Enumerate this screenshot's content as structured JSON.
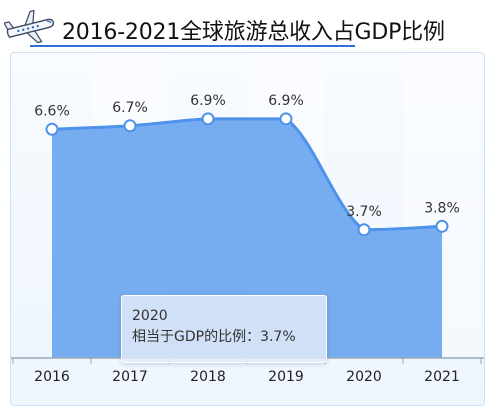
{
  "header": {
    "title": "2016-2021全球旅游总收入占GDP比例",
    "icon": "airplane-icon"
  },
  "tooltip": {
    "year": "2020",
    "label": "相当于GDP的比例",
    "separator": "：",
    "value": "3.7%"
  },
  "colors": {
    "area_fill": "#6aa6ef",
    "line": "#4f92ea",
    "point_fill": "#ffffff",
    "axis": "#9aa8b8",
    "title_underline": "#2f6fd6"
  },
  "chart_data": {
    "type": "area",
    "title": "2016-2021全球旅游总收入占GDP比例",
    "categories": [
      "2016",
      "2017",
      "2018",
      "2019",
      "2020",
      "2021"
    ],
    "series": [
      {
        "values": [
          6.6,
          6.7,
          6.9,
          6.9,
          3.7,
          3.8
        ]
      }
    ],
    "data_labels": [
      "6.6%",
      "6.7%",
      "6.9%",
      "6.9%",
      "3.7%",
      "3.8%"
    ],
    "unit": "%",
    "ylim": [
      0,
      8.8
    ],
    "grid": false,
    "smooth": true
  }
}
